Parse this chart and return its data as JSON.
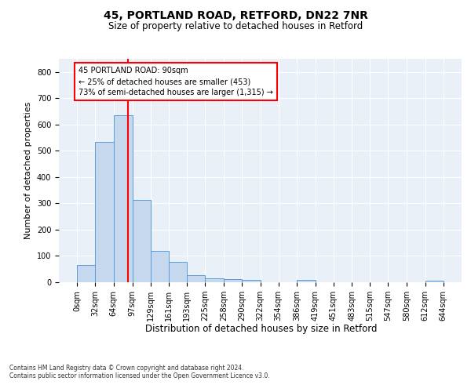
{
  "title_line1": "45, PORTLAND ROAD, RETFORD, DN22 7NR",
  "title_line2": "Size of property relative to detached houses in Retford",
  "xlabel": "Distribution of detached houses by size in Retford",
  "ylabel": "Number of detached properties",
  "footnote": "Contains HM Land Registry data © Crown copyright and database right 2024.\nContains public sector information licensed under the Open Government Licence v3.0.",
  "bin_edges": [
    0,
    32,
    64,
    97,
    129,
    161,
    193,
    225,
    258,
    290,
    322,
    354,
    386,
    419,
    451,
    483,
    515,
    547,
    580,
    612,
    644
  ],
  "bar_heights": [
    65,
    533,
    635,
    312,
    120,
    77,
    28,
    15,
    11,
    10,
    0,
    0,
    10,
    0,
    0,
    0,
    0,
    0,
    0,
    7
  ],
  "bar_color": "#c5d8ed",
  "bar_edge_color": "#5b9bd5",
  "vline_color": "red",
  "vline_x": 90,
  "annotation_text": "45 PORTLAND ROAD: 90sqm\n← 25% of detached houses are smaller (453)\n73% of semi-detached houses are larger (1,315) →",
  "annotation_box_color": "white",
  "annotation_box_edge": "red",
  "ylim": [
    0,
    850
  ],
  "yticks": [
    0,
    100,
    200,
    300,
    400,
    500,
    600,
    700,
    800
  ],
  "bg_color": "#eaf0f8",
  "grid_color": "white",
  "title1_fontsize": 10,
  "title2_fontsize": 8.5,
  "ylabel_fontsize": 8,
  "xlabel_fontsize": 8.5,
  "tick_fontsize": 7,
  "annot_fontsize": 7,
  "footnote_fontsize": 5.5
}
